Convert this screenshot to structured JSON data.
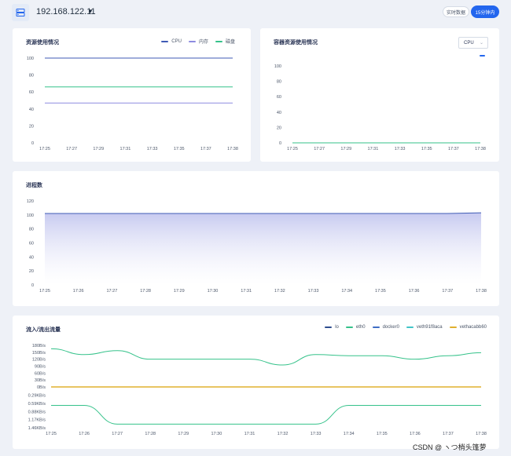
{
  "header": {
    "host": "192.168.122.11",
    "btn_realtime": "实时数据",
    "btn_15min": "15分钟内"
  },
  "resource_card": {
    "title": "资源使用情况",
    "legend": [
      {
        "label": "CPU",
        "color": "#3f5bb5"
      },
      {
        "label": "内存",
        "color": "#8d8be0"
      },
      {
        "label": "磁盘",
        "color": "#35c28a"
      }
    ]
  },
  "container_card": {
    "title": "容器资源使用情况",
    "select_value": "CPU"
  },
  "process_card": {
    "title": "进程数"
  },
  "traffic_card": {
    "title": "流入/流出流量",
    "legend": [
      {
        "label": "lo",
        "color": "#2e4d8f"
      },
      {
        "label": "eth0",
        "color": "#35c28a"
      },
      {
        "label": "docker0",
        "color": "#3f6dc4"
      },
      {
        "label": "veth91f8aca",
        "color": "#41c4c7"
      },
      {
        "label": "vethacabb60",
        "color": "#e0b02e"
      }
    ]
  },
  "watermark": "CSDN @ ヽつ梢头篷萝",
  "chart_data": [
    {
      "type": "line",
      "title": "资源使用情况",
      "x": [
        "17:25",
        "17:27",
        "17:29",
        "17:31",
        "17:33",
        "17:35",
        "17:37",
        "17:38"
      ],
      "ylim": [
        0,
        100
      ],
      "yticks": [
        0,
        20,
        40,
        60,
        80,
        100
      ],
      "series": [
        {
          "name": "CPU",
          "color": "#3f5bb5",
          "values": [
            100,
            100,
            100,
            100,
            100,
            100,
            100,
            100
          ]
        },
        {
          "name": "内存",
          "color": "#8d8be0",
          "values": [
            47,
            47,
            47,
            47,
            47,
            47,
            47,
            47
          ]
        },
        {
          "name": "磁盘",
          "color": "#35c28a",
          "values": [
            66,
            66,
            66,
            66,
            66,
            66,
            66,
            66
          ]
        }
      ],
      "grid": false,
      "legend": "top-right"
    },
    {
      "type": "line",
      "title": "容器资源使用情况",
      "x": [
        "17:25",
        "17:27",
        "17:29",
        "17:31",
        "17:33",
        "17:35",
        "17:37",
        "17:38"
      ],
      "ylim": [
        0,
        100
      ],
      "yticks": [
        0,
        20,
        40,
        60,
        80,
        100
      ],
      "series": [
        {
          "color": "#35c28a",
          "values": [
            0,
            0,
            0,
            0,
            0,
            0,
            0,
            0
          ]
        }
      ],
      "grid": false
    },
    {
      "type": "area",
      "title": "进程数",
      "x": [
        "17:25",
        "17:26",
        "17:27",
        "17:28",
        "17:29",
        "17:30",
        "17:31",
        "17:32",
        "17:33",
        "17:34",
        "17:35",
        "17:36",
        "17:37",
        "17:38"
      ],
      "ylim": [
        0,
        120
      ],
      "yticks": [
        0,
        20,
        40,
        60,
        80,
        100,
        120
      ],
      "series": [
        {
          "color": "#3f5bb5",
          "values": [
            102,
            102,
            102,
            102,
            102,
            102,
            102,
            102,
            102,
            102,
            102,
            102,
            102,
            103
          ]
        }
      ],
      "grid": false
    },
    {
      "type": "line",
      "title": "流入/流出流量",
      "x": [
        "17:25",
        "17:26",
        "17:27",
        "17:28",
        "17:29",
        "17:30",
        "17:31",
        "17:32",
        "17:33",
        "17:34",
        "17:35",
        "17:36",
        "17:37",
        "17:38"
      ],
      "yticks": [
        "1.46KB/s",
        "1.17KB/s",
        "0.88KB/s",
        "0.59KB/s",
        "0.29KB/s",
        "0B/s",
        "30B/s",
        "60B/s",
        "90B/s",
        "120B/s",
        "150B/s",
        "180B/s"
      ],
      "yvalues_note": "positive = inbound (B/s), negative = outbound (KB/s)",
      "series": [
        {
          "name": "eth0",
          "color": "#35c28a",
          "values_in_Bps": [
            165,
            140,
            157,
            120,
            120,
            120,
            120,
            95,
            140,
            135,
            135,
            120,
            135,
            148
          ]
        },
        {
          "name": "eth0",
          "color": "#35c28a",
          "values_out_KBps": [
            0.66,
            0.66,
            1.33,
            1.33,
            1.33,
            1.33,
            1.33,
            1.33,
            1.33,
            0.66,
            0.66,
            0.66,
            0.66,
            0.66
          ]
        },
        {
          "name": "vethacabb60",
          "color": "#e0b02e",
          "values_in_Bps": [
            0,
            0,
            0,
            0,
            0,
            0,
            0,
            0,
            0,
            0,
            0,
            0,
            0,
            0
          ]
        }
      ],
      "grid": false,
      "legend": "top-right"
    }
  ]
}
